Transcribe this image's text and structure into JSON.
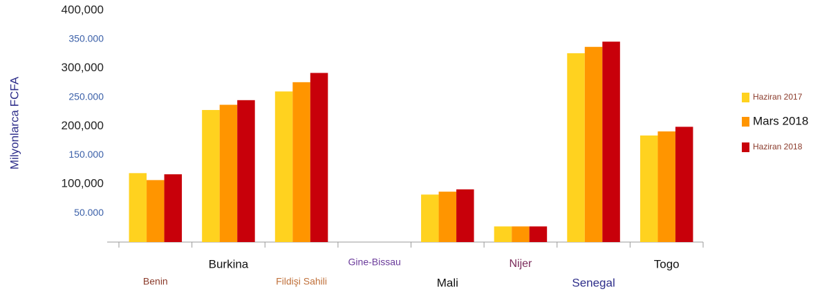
{
  "chart_data": {
    "type": "bar",
    "y_label": "Milyonlarca FCFA",
    "categories": [
      "Benin",
      "Burkina",
      "Fildişi Sahili",
      "Gine-Bissau",
      "Mali",
      "Nijer",
      "Senegal",
      "Togo"
    ],
    "series": [
      {
        "name": "Haziran 2017",
        "color": "#ffd21f",
        "values": [
          119000,
          228000,
          260000,
          null,
          82000,
          27000,
          326000,
          184000
        ]
      },
      {
        "name": "Mars 2018",
        "color": "#ff9500",
        "values": [
          107000,
          237000,
          276000,
          null,
          87000,
          27000,
          337000,
          191000
        ]
      },
      {
        "name": "Haziran 2018",
        "color": "#c8000a",
        "values": [
          117000,
          245000,
          292000,
          null,
          91000,
          27000,
          346000,
          199000
        ]
      }
    ],
    "ylim": [
      0,
      400000
    ],
    "yticks": [
      {
        "value": 50000,
        "label": "50.000"
      },
      {
        "value": 100000,
        "label": "100,000"
      },
      {
        "value": 150000,
        "label": "150.000"
      },
      {
        "value": 200000,
        "label": "200,000"
      },
      {
        "value": 250000,
        "label": "250.000"
      },
      {
        "value": 300000,
        "label": "300,000"
      },
      {
        "value": 350000,
        "label": "350.000"
      },
      {
        "value": 400000,
        "label": "400,000"
      }
    ],
    "legend": "right"
  }
}
